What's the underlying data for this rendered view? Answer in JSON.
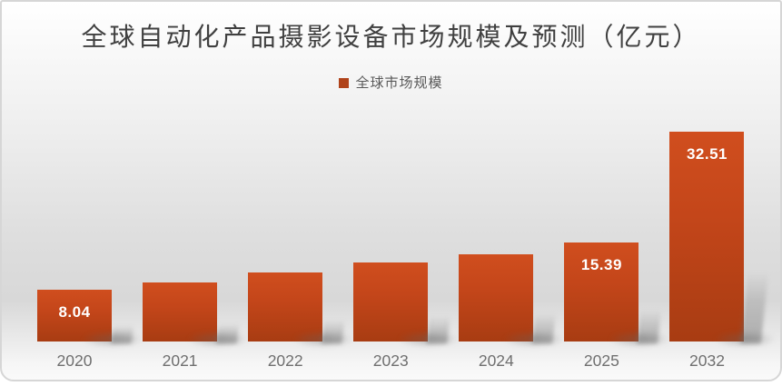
{
  "chart": {
    "title": "全球自动化产品摄影设备市场规模及预测（亿元）",
    "unit": "亿元"
  },
  "legend": {
    "label": "全球市场规模",
    "marker_color": "#b0431a",
    "position": "top-center"
  },
  "chart_data": {
    "type": "bar",
    "title": "全球自动化产品摄影设备市场规模及预测（亿元）",
    "categories": [
      "2020",
      "2021",
      "2022",
      "2023",
      "2024",
      "2025",
      "2032"
    ],
    "series": [
      {
        "name": "全球市场规模",
        "values": [
          8.04,
          9.15,
          10.75,
          12.2,
          13.5,
          15.39,
          32.51
        ]
      }
    ],
    "value_labels": [
      "8.04",
      "",
      "",
      "",
      "",
      "15.39",
      "32.51"
    ],
    "values_estimated_from_pixels": [
      false,
      true,
      true,
      true,
      true,
      false,
      false
    ],
    "xlabel": "",
    "ylabel": "",
    "ylim": [
      0,
      34
    ],
    "grid": false,
    "legend_position": "top-center"
  },
  "colors": {
    "bar_top": "#d04e1e",
    "bar_bottom": "#a83c12",
    "legend_marker": "#b0431a",
    "title_text": "#404040",
    "legend_text": "#595959",
    "axis_text": "#6f6f6f",
    "value_label_text": "#ffffff",
    "card_border": "#d6d6d6"
  }
}
